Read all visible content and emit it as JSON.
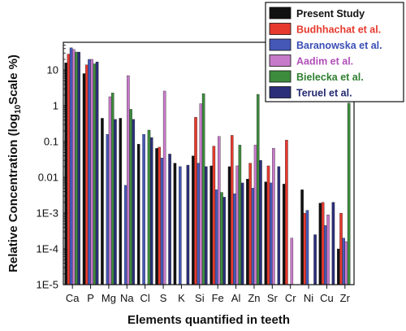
{
  "chart_data": {
    "type": "bar",
    "scale": "log10",
    "ylabel_parts": [
      "Relative Concentration (log",
      "10",
      "Scale %)"
    ],
    "xlabel": "Elements quantified in teeth",
    "yticks": [
      {
        "value": 1e-05,
        "label": "1E-5"
      },
      {
        "value": 0.0001,
        "label": "1E-4"
      },
      {
        "value": 0.001,
        "label": "1E-3"
      },
      {
        "value": 0.01,
        "label": "0.01"
      },
      {
        "value": 0.1,
        "label": "0.1"
      },
      {
        "value": 1,
        "label": "1"
      },
      {
        "value": 10,
        "label": "10"
      }
    ],
    "ylim": [
      1e-05,
      60
    ],
    "categories": [
      "Ca",
      "P",
      "Mg",
      "Na",
      "Cl",
      "S",
      "K",
      "Si",
      "Fe",
      "Al",
      "Zn",
      "Sr",
      "Cr",
      "Ni",
      "Cu",
      "Zr"
    ],
    "series": [
      {
        "name": "Present Study",
        "color": "#111111",
        "label_color": "#111111",
        "values": [
          16,
          8,
          0.45,
          0.45,
          0.085,
          0.065,
          0.025,
          0.04,
          0.021,
          0.02,
          0.009,
          0.0075,
          0.0065,
          0.0045,
          0.0019,
          0.0001
        ]
      },
      {
        "name": "Budhhachat et al.",
        "color": "#e63a2e",
        "label_color": "#e63a2e",
        "values": [
          28,
          14,
          null,
          null,
          null,
          0.07,
          null,
          0.48,
          0.075,
          0.15,
          0.025,
          0.021,
          0.11,
          0.001,
          0.002,
          0.001
        ]
      },
      {
        "name": "Baranowska et al.",
        "color": "#4558b8",
        "label_color": "#3a4fb5",
        "values": [
          42,
          20,
          0.16,
          0.006,
          0.16,
          0.035,
          0.02,
          0.025,
          0.0045,
          0.0035,
          0.005,
          0.007,
          1e-05,
          0.0012,
          0.00045,
          0.0002
        ]
      },
      {
        "name": "Aadim et al.",
        "color": "#c77ac9",
        "label_color": "#b14fb8",
        "values": [
          38,
          20,
          1.8,
          7,
          null,
          2.6,
          null,
          1.15,
          0.14,
          0.021,
          0.08,
          0.065,
          0.0002,
          null,
          0.0009,
          0.00016
        ]
      },
      {
        "name": "Bielecka et al.",
        "color": "#3d8b3d",
        "label_color": "#2f7f2f",
        "values": [
          32,
          15,
          2.3,
          0.8,
          0.21,
          null,
          null,
          2.2,
          0.0038,
          0.08,
          2.1,
          null,
          null,
          null,
          null,
          1.2
        ]
      },
      {
        "name": "Teruel et al.",
        "color": "#2b2f7a",
        "label_color": "#232870",
        "values": [
          32,
          17,
          0.42,
          0.42,
          0.13,
          0.045,
          0.022,
          0.02,
          0.0028,
          0.007,
          0.03,
          0.02,
          null,
          0.00025,
          0.002,
          null
        ]
      }
    ]
  }
}
